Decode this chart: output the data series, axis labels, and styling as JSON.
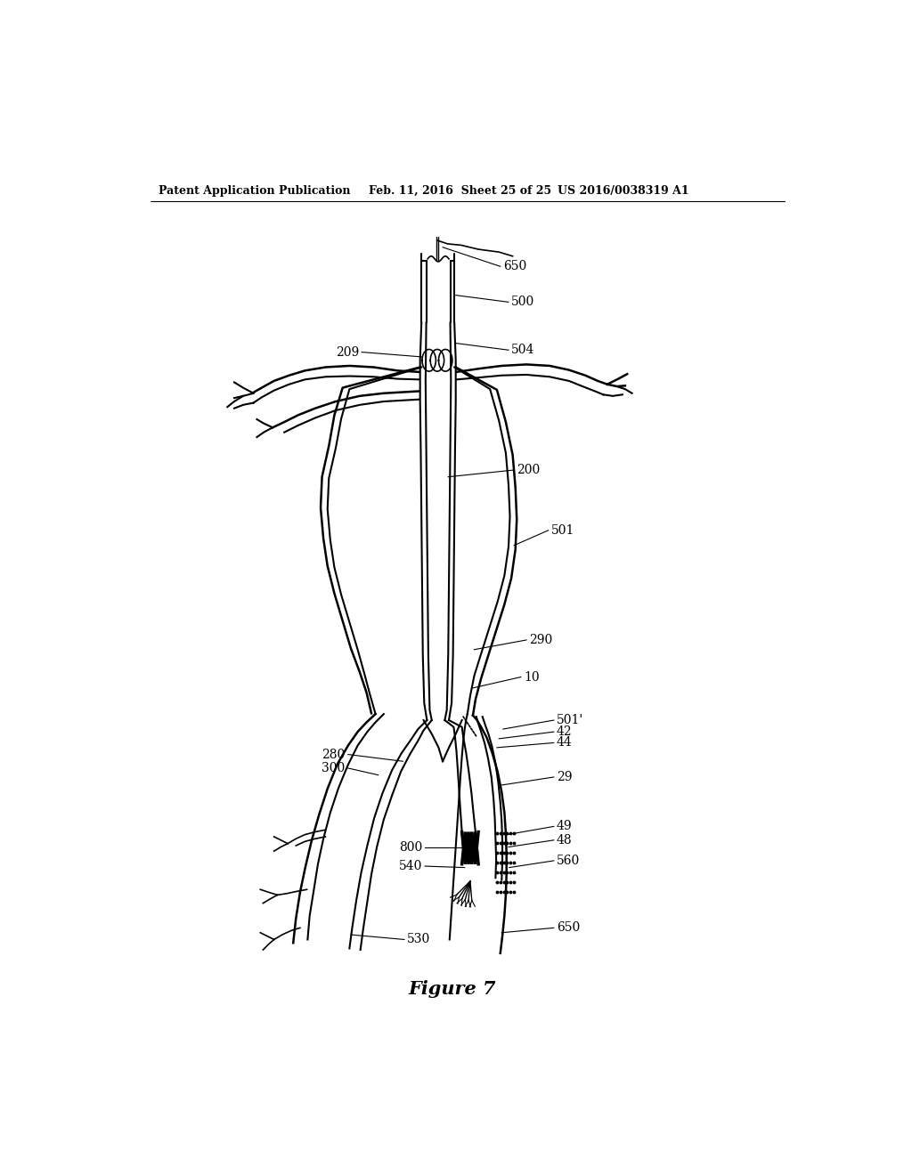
{
  "title": "Figure 7",
  "header_left": "Patent Application Publication",
  "header_mid": "Feb. 11, 2016  Sheet 25 of 25",
  "header_right": "US 2016/0038319 A1",
  "bg_color": "#ffffff",
  "line_color": "#000000",
  "labels": {
    "650_top": "650",
    "500": "500",
    "504": "504",
    "209": "209",
    "200": "200",
    "501": "501",
    "290": "290",
    "10": "10",
    "280": "280",
    "300": "300",
    "501p": "501'",
    "42": "42",
    "44": "44",
    "29": "29",
    "49": "49",
    "48": "48",
    "560": "560",
    "650_bot": "650",
    "800": "800",
    "540": "540",
    "530": "530"
  }
}
